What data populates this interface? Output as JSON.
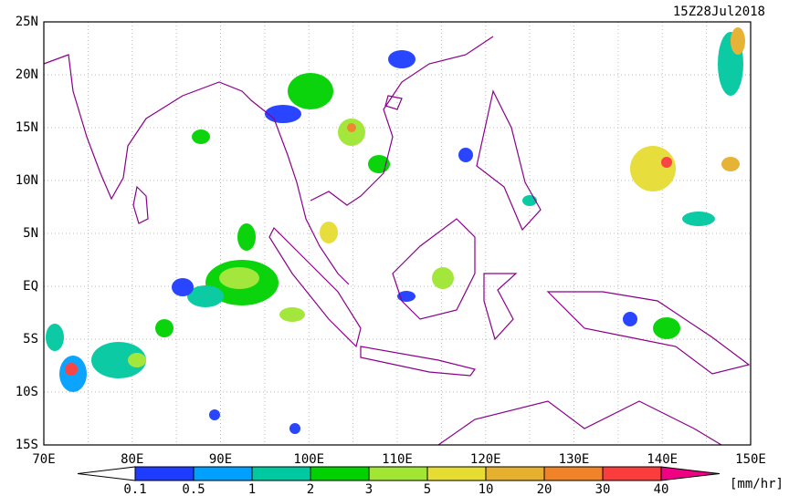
{
  "title": "15Z28Jul2018",
  "map": {
    "lat_labels": [
      "25N",
      "20N",
      "15N",
      "10N",
      "5N",
      "EQ",
      "5S",
      "10S",
      "15S"
    ],
    "lon_labels": [
      "70E",
      "80E",
      "90E",
      "100E",
      "110E",
      "120E",
      "130E",
      "140E",
      "150E"
    ]
  },
  "colorbar": {
    "labels": [
      "0.1",
      "0.5",
      "1",
      "2",
      "3",
      "5",
      "10",
      "20",
      "30",
      "40"
    ],
    "colors": [
      "#1e3cff",
      "#00a0ff",
      "#00c8a0",
      "#00d200",
      "#a0e632",
      "#e6dc32",
      "#e6af2d",
      "#f08228",
      "#fa3c3c",
      "#f00082"
    ],
    "unit": "[mm/hr]"
  }
}
